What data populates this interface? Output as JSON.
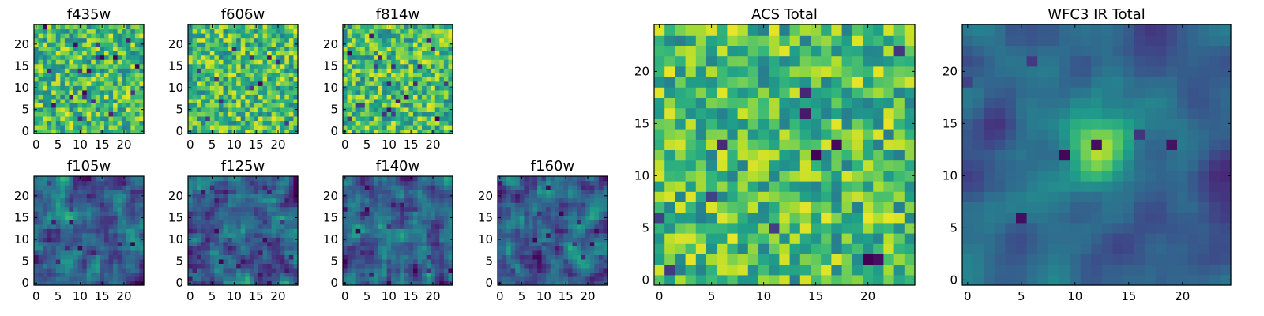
{
  "chart_data": [
    {
      "type": "heatmap",
      "title": "f435w",
      "xticks": [
        "0",
        "5",
        "10",
        "15",
        "20"
      ],
      "yticks": [
        "0",
        "5",
        "10",
        "15",
        "20"
      ],
      "xlim": [
        0,
        25
      ],
      "ylim": [
        0,
        25
      ],
      "grid": false,
      "style": "noise",
      "colormap": "viridis",
      "seed": 11
    },
    {
      "type": "heatmap",
      "title": "f606w",
      "xticks": [
        "0",
        "5",
        "10",
        "15",
        "20"
      ],
      "yticks": [
        "0",
        "5",
        "10",
        "15",
        "20"
      ],
      "xlim": [
        0,
        25
      ],
      "ylim": [
        0,
        25
      ],
      "grid": false,
      "style": "noise",
      "colormap": "viridis",
      "seed": 23
    },
    {
      "type": "heatmap",
      "title": "f814w",
      "xticks": [
        "0",
        "5",
        "10",
        "15",
        "20"
      ],
      "yticks": [
        "0",
        "5",
        "10",
        "15",
        "20"
      ],
      "xlim": [
        0,
        25
      ],
      "ylim": [
        0,
        25
      ],
      "grid": false,
      "style": "noise",
      "colormap": "viridis",
      "seed": 37
    },
    {
      "type": "heatmap",
      "title": "f105w",
      "xticks": [
        "0",
        "5",
        "10",
        "15",
        "20"
      ],
      "yticks": [
        "0",
        "5",
        "10",
        "15",
        "20"
      ],
      "xlim": [
        0,
        25
      ],
      "ylim": [
        0,
        25
      ],
      "grid": false,
      "style": "smooth",
      "colormap": "viridis",
      "seed": 41
    },
    {
      "type": "heatmap",
      "title": "f125w",
      "xticks": [
        "0",
        "5",
        "10",
        "15",
        "20"
      ],
      "yticks": [
        "0",
        "5",
        "10",
        "15",
        "20"
      ],
      "xlim": [
        0,
        25
      ],
      "ylim": [
        0,
        25
      ],
      "grid": false,
      "style": "smooth",
      "colormap": "viridis",
      "seed": 53
    },
    {
      "type": "heatmap",
      "title": "f140w",
      "xticks": [
        "0",
        "5",
        "10",
        "15",
        "20"
      ],
      "yticks": [
        "0",
        "5",
        "10",
        "15",
        "20"
      ],
      "xlim": [
        0,
        25
      ],
      "ylim": [
        0,
        25
      ],
      "grid": false,
      "style": "smooth",
      "colormap": "viridis",
      "seed": 67
    },
    {
      "type": "heatmap",
      "title": "f160w",
      "xticks": [
        "0",
        "5",
        "10",
        "15",
        "20"
      ],
      "yticks": [
        "0",
        "5",
        "10",
        "15",
        "20"
      ],
      "xlim": [
        0,
        25
      ],
      "ylim": [
        0,
        25
      ],
      "grid": false,
      "style": "smooth",
      "colormap": "viridis",
      "seed": 79
    },
    {
      "type": "heatmap",
      "title": "ACS Total",
      "xticks": [
        "0",
        "5",
        "10",
        "15",
        "20"
      ],
      "yticks": [
        "0",
        "5",
        "10",
        "15",
        "20"
      ],
      "xlim": [
        0,
        25
      ],
      "ylim": [
        0,
        25
      ],
      "grid": false,
      "style": "noise",
      "colormap": "viridis",
      "seed": 97
    },
    {
      "type": "heatmap",
      "title": "WFC3 IR Total",
      "xticks": [
        "0",
        "5",
        "10",
        "15",
        "20"
      ],
      "yticks": [
        "0",
        "5",
        "10",
        "15",
        "20"
      ],
      "xlim": [
        0,
        25
      ],
      "ylim": [
        0,
        25
      ],
      "grid": false,
      "style": "blob",
      "colormap": "viridis",
      "seed": 113
    }
  ]
}
